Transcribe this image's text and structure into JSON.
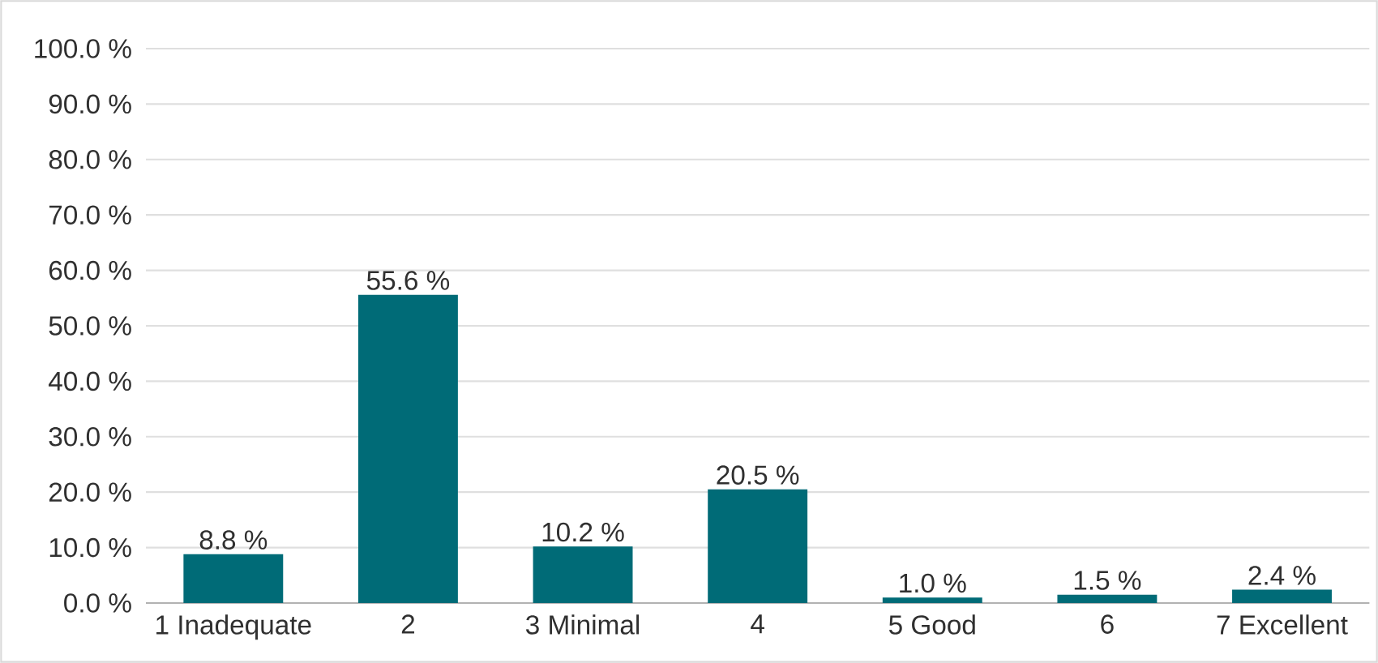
{
  "chart_data": {
    "type": "bar",
    "categories": [
      "1 Inadequate",
      "2",
      "3 Minimal",
      "4",
      "5 Good",
      "6",
      "7 Excellent"
    ],
    "values": [
      8.8,
      55.6,
      10.2,
      20.5,
      1.0,
      1.5,
      2.4
    ],
    "value_labels": [
      "8.8 %",
      "55.6 %",
      "10.2 %",
      "20.5 %",
      "1.0 %",
      "1.5 %",
      "2.4 %"
    ],
    "color": "#006b77",
    "ylim": [
      0,
      100
    ],
    "yticks": [
      {
        "value": 0,
        "label": "0.0 %"
      },
      {
        "value": 10,
        "label": "10.0 %"
      },
      {
        "value": 20,
        "label": "20.0 %"
      },
      {
        "value": 30,
        "label": "30.0 %"
      },
      {
        "value": 40,
        "label": "40.0 %"
      },
      {
        "value": 50,
        "label": "50.0 %"
      },
      {
        "value": 60,
        "label": "60.0 %"
      },
      {
        "value": 70,
        "label": "70.0 %"
      },
      {
        "value": 80,
        "label": "80.0 %"
      },
      {
        "value": 90,
        "label": "90.0 %"
      },
      {
        "value": 100,
        "label": "100.0 %"
      }
    ],
    "grid": "y"
  }
}
